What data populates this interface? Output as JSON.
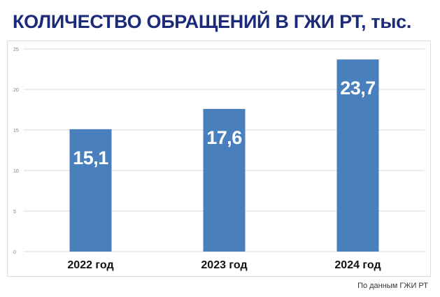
{
  "colors": {
    "title": "#1c2a7a",
    "bar": "#4a7fbd",
    "bar_label": "#ffffff",
    "grid": "#d9d9d9",
    "axis_text": "#7f7f7f",
    "category_text": "#111111"
  },
  "header": {
    "title": "КОЛИЧЕСТВО ОБРАЩЕНИЙ В ГЖИ РТ, тыс."
  },
  "footer": {
    "source": "По данным ГЖИ РТ"
  },
  "chart_data": {
    "type": "bar",
    "title": "КОЛИЧЕСТВО ОБРАЩЕНИЙ В ГЖИ РТ, тыс.",
    "categories": [
      "2022 год",
      "2023 год",
      "2024 год"
    ],
    "values": [
      15.1,
      17.6,
      23.7
    ],
    "value_labels": [
      "15,1",
      "17,6",
      "23,7"
    ],
    "xlabel": "",
    "ylabel": "",
    "ylim": [
      0,
      25
    ],
    "yticks": [
      0,
      5,
      10,
      15,
      20,
      25
    ],
    "ytick_labels": [
      "0",
      "5",
      "10",
      "15",
      "20",
      "25"
    ],
    "grid": true,
    "legend": "none"
  }
}
